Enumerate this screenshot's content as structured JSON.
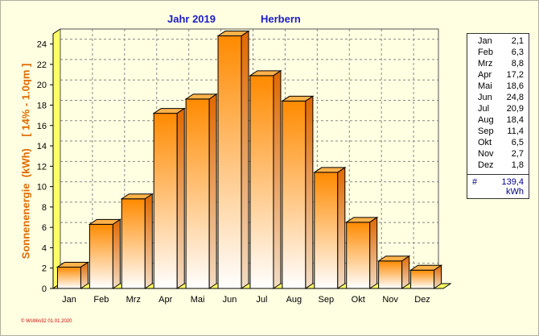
{
  "chart_data": {
    "type": "bar",
    "title_year": "Jahr  2019",
    "title_location": "Herbern",
    "ylabel": "Sonnenenergie  (kWh)    [ 14% - 1.0qm ]",
    "categories": [
      "Jan",
      "Feb",
      "Mrz",
      "Apr",
      "Mai",
      "Jun",
      "Jul",
      "Aug",
      "Sep",
      "Okt",
      "Nov",
      "Dez"
    ],
    "values": [
      2.1,
      6.3,
      8.8,
      17.2,
      18.6,
      24.8,
      20.9,
      18.4,
      11.4,
      6.5,
      2.7,
      1.8
    ],
    "value_labels": [
      "2,1",
      "6,3",
      "8,8",
      "17,2",
      "18,6",
      "24,8",
      "20,9",
      "18,4",
      "11,4",
      "6,5",
      "2,7",
      "1,8"
    ],
    "ylim": [
      0,
      25
    ],
    "yticks": [
      0,
      2,
      4,
      6,
      8,
      10,
      12,
      14,
      16,
      18,
      20,
      22,
      24
    ],
    "grid": true,
    "legend_position": "right",
    "total_symbol": "#",
    "total": "139,4",
    "unit": "kWh",
    "colors": {
      "bar_top": "#ff8a00",
      "bar_bottom": "#ffffff",
      "bar_edge": "#000000",
      "floor": "#ffff66",
      "wall": "#ffff66",
      "grid": "#888888",
      "title": "#1c1cc8",
      "ylabel": "#e06a00"
    }
  },
  "footer": "© WsWin32  01.01.2020"
}
